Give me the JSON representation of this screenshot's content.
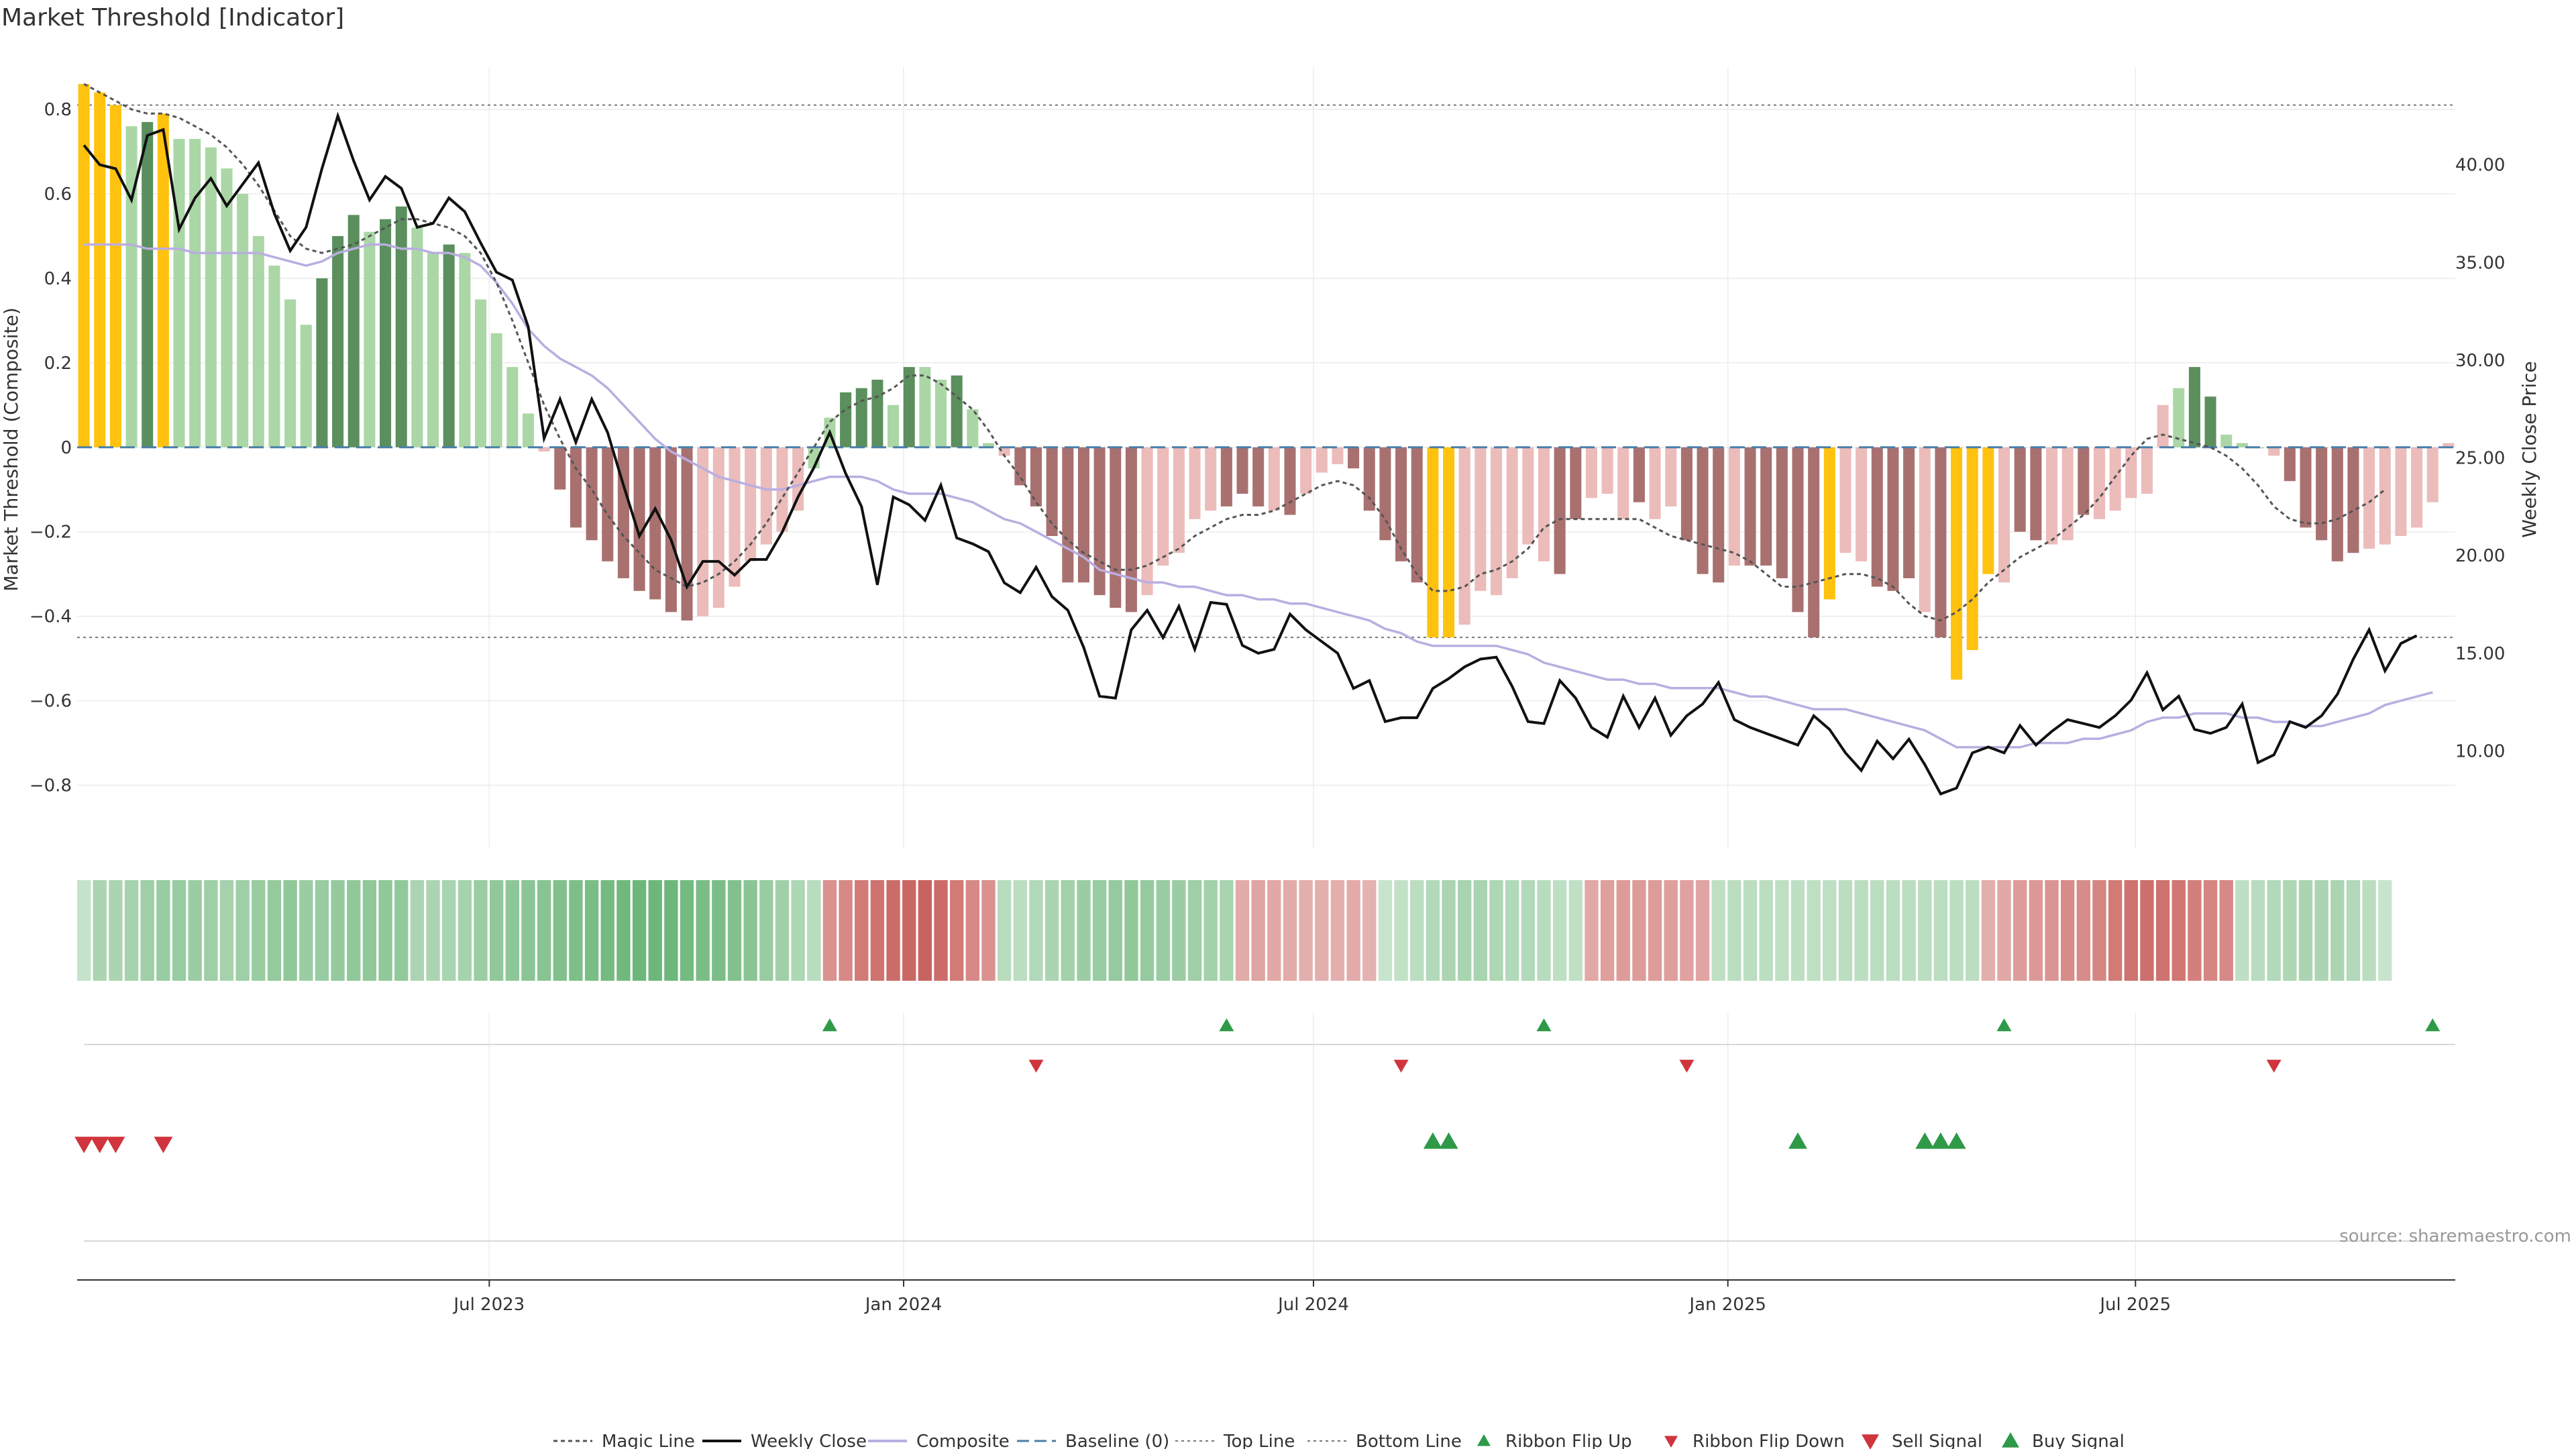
{
  "title": "Market Threshold [Indicator]",
  "source": "source: sharemaestro.com",
  "colors": {
    "dark_green": "#5b8f5e",
    "light_green": "#aad7a5",
    "dark_red": "#a87170",
    "light_red": "#ebbcba",
    "gold": "#ffc20e",
    "close_line": "#111111",
    "composite_line": "#b9aee0",
    "magic_line": "#555555",
    "baseline": "#4a7fa8",
    "ribbon_up": "#2e9a48",
    "ribbon_down": "#d0343c",
    "sell_signal": "#d0343c",
    "buy_signal": "#2e9a48"
  },
  "chart_data": {
    "type": "bar",
    "title": "Market Threshold [Indicator]",
    "ylabel": "Market Threshold (Composite)",
    "y2label": "Weekly Close Price",
    "ylim": [
      -0.95,
      0.9
    ],
    "y2lim": [
      5,
      45
    ],
    "yticks": [
      0.8,
      0.6,
      0.4,
      0.2,
      0,
      -0.2,
      -0.4,
      -0.6,
      -0.8
    ],
    "ytick_labels": [
      "0.8",
      "0.6",
      "0.4",
      "0.2",
      "0",
      "−0.2",
      "−0.4",
      "−0.6",
      "−0.8"
    ],
    "y2ticks": [
      40,
      35,
      30,
      25,
      20,
      15,
      10
    ],
    "y2tick_labels": [
      "40.00",
      "35.00",
      "30.00",
      "25.00",
      "20.00",
      "15.00",
      "10.00"
    ],
    "x_start": "2023-01-02",
    "x_end": "2025-11-17",
    "x_axis_range": [
      "2022-12-30",
      "2025-11-20"
    ],
    "xticks": [
      "2023-07-01",
      "2024-01-01",
      "2024-07-01",
      "2025-01-01",
      "2025-07-01"
    ],
    "xtick_labels": [
      "Jul 2023",
      "Jan 2024",
      "Jul 2024",
      "Jan 2025",
      "Jul 2025"
    ],
    "top_line": 0.81,
    "bottom_line": -0.45,
    "grid": true,
    "legend_position": "bottom",
    "composite_bars": [
      0.86,
      0.84,
      0.81,
      0.76,
      0.77,
      0.79,
      0.73,
      0.73,
      0.71,
      0.66,
      0.6,
      0.5,
      0.43,
      0.35,
      0.29,
      0.4,
      0.5,
      0.55,
      0.51,
      0.54,
      0.57,
      0.52,
      0.46,
      0.48,
      0.46,
      0.35,
      0.27,
      0.19,
      0.08,
      -0.01,
      -0.1,
      -0.19,
      -0.22,
      -0.27,
      -0.31,
      -0.34,
      -0.36,
      -0.39,
      -0.41,
      -0.4,
      -0.38,
      -0.33,
      -0.27,
      -0.23,
      -0.2,
      -0.15,
      -0.05,
      0.07,
      0.13,
      0.14,
      0.16,
      0.1,
      0.19,
      0.19,
      0.16,
      0.17,
      0.09,
      0.01,
      -0.02,
      -0.09,
      -0.14,
      -0.21,
      -0.32,
      -0.32,
      -0.35,
      -0.38,
      -0.39,
      -0.35,
      -0.28,
      -0.25,
      -0.17,
      -0.15,
      -0.14,
      -0.11,
      -0.14,
      -0.15,
      -0.16,
      -0.11,
      -0.06,
      -0.04,
      -0.05,
      -0.15,
      -0.22,
      -0.27,
      -0.32,
      -0.45,
      -0.45,
      -0.42,
      -0.34,
      -0.35,
      -0.31,
      -0.23,
      -0.27,
      -0.3,
      -0.17,
      -0.12,
      -0.11,
      -0.17,
      -0.13,
      -0.17,
      -0.14,
      -0.22,
      -0.3,
      -0.32,
      -0.28,
      -0.28,
      -0.28,
      -0.31,
      -0.39,
      -0.45,
      -0.36,
      -0.25,
      -0.27,
      -0.33,
      -0.34,
      -0.31,
      -0.39,
      -0.45,
      -0.55,
      -0.48,
      -0.3,
      -0.32,
      -0.2,
      -0.22,
      -0.23,
      -0.22,
      -0.16,
      -0.17,
      -0.15,
      -0.12,
      -0.11,
      0.1,
      0.14,
      0.19,
      0.12,
      0.03,
      0.01,
      0.0,
      -0.02,
      -0.08,
      -0.19,
      -0.22,
      -0.27,
      -0.25,
      -0.24,
      -0.23,
      -0.21,
      -0.19,
      -0.13,
      0.01
    ],
    "bar_categories": [
      "ldg",
      "g",
      "g",
      "lg",
      "dg",
      "g",
      "lg",
      "lg",
      "lg",
      "lg",
      "lg",
      "lg",
      "lg",
      "lg",
      "lg",
      "dg",
      "dg",
      "dg",
      "lg",
      "dg",
      "dg",
      "lg",
      "lg",
      "dg",
      "lg",
      "lg",
      "lg",
      "lg",
      "lg",
      "lr",
      "dr",
      "dr",
      "dr",
      "dr",
      "dr",
      "dr",
      "dr",
      "dr",
      "dr",
      "lr",
      "lr",
      "lr",
      "lr",
      "lr",
      "lr",
      "lr",
      "lg",
      "lg",
      "dg",
      "dg",
      "dg",
      "lg",
      "dg",
      "lg",
      "lg",
      "dg",
      "lg",
      "lg",
      "lr",
      "dr",
      "dr",
      "dr",
      "dr",
      "dr",
      "dr",
      "dr",
      "dr",
      "lr",
      "lr",
      "lr",
      "lr",
      "lr",
      "dr",
      "dr",
      "dr",
      "lr",
      "dr",
      "lr",
      "lr",
      "lr",
      "dr",
      "dr",
      "dr",
      "dr",
      "dr",
      "g",
      "g",
      "lr",
      "lr",
      "lr",
      "lr",
      "lr",
      "lr",
      "dr",
      "dr",
      "lr",
      "lr",
      "lr",
      "dr",
      "lr",
      "lr",
      "dr",
      "dr",
      "dr",
      "lr",
      "dr",
      "dr",
      "dr",
      "dr",
      "dr",
      "g",
      "lr",
      "lr",
      "dr",
      "dr",
      "dr",
      "lr",
      "dr",
      "g",
      "g",
      "g",
      "lr",
      "dr",
      "dr",
      "lr",
      "lr",
      "dr",
      "lr",
      "lr",
      "lr",
      "lr",
      "lr",
      "lg",
      "dg",
      "dg",
      "lg",
      "lg",
      "lg",
      "lr",
      "dr",
      "dr",
      "dr",
      "dr",
      "dr",
      "lr",
      "lr",
      "lr",
      "lr",
      "lr"
    ],
    "weekly_close": [
      41.0,
      40.0,
      39.8,
      38.2,
      41.5,
      41.8,
      36.7,
      38.3,
      39.3,
      37.9,
      39.0,
      40.1,
      37.5,
      35.6,
      36.8,
      39.8,
      42.5,
      40.2,
      38.2,
      39.4,
      38.8,
      36.8,
      37.0,
      38.3,
      37.6,
      36.0,
      34.5,
      34.1,
      31.7,
      26.0,
      28.0,
      25.8,
      28.0,
      26.3,
      23.6,
      21.0,
      22.4,
      20.8,
      18.4,
      19.7,
      19.7,
      19.0,
      19.8,
      19.8,
      21.2,
      23.0,
      24.5,
      26.3,
      24.2,
      22.5,
      18.5,
      23.0,
      22.6,
      21.8,
      23.6,
      20.9,
      20.6,
      20.2,
      18.6,
      18.1,
      19.4,
      17.9,
      17.2,
      15.3,
      12.8,
      12.7,
      16.2,
      17.2,
      15.8,
      17.4,
      15.2,
      17.6,
      17.5,
      15.4,
      15.0,
      15.2,
      17.0,
      16.2,
      15.6,
      15.0,
      13.2,
      13.6,
      11.5,
      11.7,
      11.7,
      13.2,
      13.7,
      14.3,
      14.7,
      14.8,
      13.3,
      11.5,
      11.4,
      13.6,
      12.7,
      11.2,
      10.7,
      12.8,
      11.2,
      12.7,
      10.8,
      11.8,
      12.4,
      13.5,
      11.6,
      11.2,
      10.9,
      10.6,
      10.3,
      11.8,
      11.1,
      9.9,
      9.0,
      10.5,
      9.6,
      10.6,
      9.3,
      7.8,
      8.1,
      9.9,
      10.2,
      9.9,
      11.3,
      10.3,
      11.0,
      11.6,
      11.4,
      11.2,
      11.8,
      12.6,
      14.0,
      12.1,
      12.8,
      11.1,
      10.9,
      11.2,
      12.4,
      9.4,
      9.8,
      11.5,
      11.2,
      11.8,
      12.9,
      14.7,
      16.2,
      14.1,
      15.5,
      15.9
    ],
    "composite": [
      0.48,
      0.48,
      0.48,
      0.48,
      0.47,
      0.47,
      0.47,
      0.46,
      0.46,
      0.46,
      0.46,
      0.46,
      0.45,
      0.44,
      0.43,
      0.44,
      0.46,
      0.47,
      0.48,
      0.48,
      0.47,
      0.47,
      0.46,
      0.46,
      0.45,
      0.43,
      0.39,
      0.34,
      0.28,
      0.24,
      0.21,
      0.19,
      0.17,
      0.14,
      0.1,
      0.06,
      0.02,
      -0.01,
      -0.03,
      -0.05,
      -0.07,
      -0.08,
      -0.09,
      -0.1,
      -0.1,
      -0.09,
      -0.08,
      -0.07,
      -0.07,
      -0.07,
      -0.08,
      -0.1,
      -0.11,
      -0.11,
      -0.11,
      -0.12,
      -0.13,
      -0.15,
      -0.17,
      -0.18,
      -0.2,
      -0.22,
      -0.24,
      -0.26,
      -0.29,
      -0.3,
      -0.31,
      -0.32,
      -0.32,
      -0.33,
      -0.33,
      -0.34,
      -0.35,
      -0.35,
      -0.36,
      -0.36,
      -0.37,
      -0.37,
      -0.38,
      -0.39,
      -0.4,
      -0.41,
      -0.43,
      -0.44,
      -0.46,
      -0.47,
      -0.47,
      -0.47,
      -0.47,
      -0.47,
      -0.48,
      -0.49,
      -0.51,
      -0.52,
      -0.53,
      -0.54,
      -0.55,
      -0.55,
      -0.56,
      -0.56,
      -0.57,
      -0.57,
      -0.57,
      -0.57,
      -0.58,
      -0.59,
      -0.59,
      -0.6,
      -0.61,
      -0.62,
      -0.62,
      -0.62,
      -0.63,
      -0.64,
      -0.65,
      -0.66,
      -0.67,
      -0.69,
      -0.71,
      -0.71,
      -0.71,
      -0.71,
      -0.71,
      -0.7,
      -0.7,
      -0.7,
      -0.69,
      -0.69,
      -0.68,
      -0.67,
      -0.65,
      -0.64,
      -0.64,
      -0.63,
      -0.63,
      -0.63,
      -0.64,
      -0.64,
      -0.65,
      -0.65,
      -0.66,
      -0.66,
      -0.65,
      -0.64,
      -0.63,
      -0.61,
      -0.6,
      -0.59,
      -0.58
    ],
    "magic_line": [
      0.86,
      0.84,
      0.82,
      0.8,
      0.79,
      0.79,
      0.78,
      0.76,
      0.74,
      0.71,
      0.67,
      0.62,
      0.56,
      0.5,
      0.47,
      0.46,
      0.47,
      0.48,
      0.5,
      0.52,
      0.54,
      0.54,
      0.53,
      0.52,
      0.5,
      0.46,
      0.39,
      0.3,
      0.2,
      0.1,
      0.02,
      -0.05,
      -0.1,
      -0.16,
      -0.21,
      -0.25,
      -0.29,
      -0.31,
      -0.33,
      -0.32,
      -0.3,
      -0.27,
      -0.23,
      -0.18,
      -0.12,
      -0.06,
      0.0,
      0.06,
      0.09,
      0.11,
      0.12,
      0.14,
      0.17,
      0.17,
      0.15,
      0.12,
      0.09,
      0.04,
      -0.02,
      -0.07,
      -0.13,
      -0.18,
      -0.22,
      -0.25,
      -0.27,
      -0.29,
      -0.29,
      -0.28,
      -0.26,
      -0.24,
      -0.21,
      -0.19,
      -0.17,
      -0.16,
      -0.16,
      -0.15,
      -0.13,
      -0.11,
      -0.09,
      -0.08,
      -0.09,
      -0.12,
      -0.17,
      -0.24,
      -0.3,
      -0.34,
      -0.34,
      -0.33,
      -0.3,
      -0.29,
      -0.27,
      -0.24,
      -0.19,
      -0.17,
      -0.17,
      -0.17,
      -0.17,
      -0.17,
      -0.17,
      -0.19,
      -0.21,
      -0.22,
      -0.23,
      -0.24,
      -0.25,
      -0.27,
      -0.3,
      -0.33,
      -0.33,
      -0.32,
      -0.31,
      -0.3,
      -0.3,
      -0.31,
      -0.33,
      -0.37,
      -0.4,
      -0.41,
      -0.39,
      -0.36,
      -0.32,
      -0.29,
      -0.26,
      -0.24,
      -0.22,
      -0.19,
      -0.16,
      -0.12,
      -0.07,
      -0.02,
      0.02,
      0.03,
      0.02,
      0.01,
      0.0,
      -0.02,
      -0.05,
      -0.09,
      -0.14,
      -0.17,
      -0.18,
      -0.18,
      -0.17,
      -0.15,
      -0.13,
      -0.1
    ],
    "ribbon": [
      0.14,
      0.3,
      0.3,
      0.33,
      0.38,
      0.42,
      0.42,
      0.4,
      0.38,
      0.34,
      0.38,
      0.42,
      0.44,
      0.46,
      0.4,
      0.42,
      0.44,
      0.46,
      0.47,
      0.47,
      0.45,
      0.3,
      0.3,
      0.32,
      0.33,
      0.4,
      0.46,
      0.48,
      0.5,
      0.52,
      0.56,
      0.58,
      0.6,
      0.64,
      0.66,
      0.68,
      0.7,
      0.68,
      0.64,
      0.6,
      0.6,
      0.55,
      0.5,
      0.42,
      0.36,
      0.28,
      0.22,
      -0.35,
      -0.4,
      -0.48,
      -0.52,
      -0.55,
      -0.58,
      -0.6,
      -0.55,
      -0.48,
      -0.4,
      -0.35,
      0.22,
      0.2,
      0.25,
      0.3,
      0.35,
      0.4,
      0.42,
      0.44,
      0.46,
      0.44,
      0.42,
      0.4,
      0.38,
      0.35,
      0.32,
      -0.22,
      -0.25,
      -0.24,
      -0.22,
      -0.2,
      -0.2,
      -0.2,
      -0.22,
      -0.18,
      0.12,
      0.15,
      0.2,
      0.25,
      0.3,
      0.32,
      0.32,
      0.28,
      0.25,
      0.25,
      0.22,
      0.18,
      0.16,
      -0.24,
      -0.28,
      -0.3,
      -0.3,
      -0.3,
      -0.28,
      -0.26,
      -0.25,
      0.18,
      0.2,
      0.2,
      0.2,
      0.18,
      0.18,
      0.18,
      0.18,
      0.2,
      0.2,
      0.2,
      0.2,
      0.2,
      0.2,
      0.2,
      0.2,
      0.2,
      -0.2,
      -0.24,
      -0.3,
      -0.32,
      -0.34,
      -0.38,
      -0.38,
      -0.42,
      -0.48,
      -0.52,
      -0.54,
      -0.52,
      -0.5,
      -0.45,
      -0.42,
      -0.4,
      0.18,
      0.22,
      0.25,
      0.28,
      0.3,
      0.3,
      0.3,
      0.25,
      0.2,
      0.12
    ],
    "ribbon_flip_up_index": [
      47,
      72,
      92,
      121,
      148
    ],
    "ribbon_flip_down_index": [
      60,
      83,
      101,
      138
    ],
    "sell_signal_index": [
      0,
      1,
      2,
      5
    ],
    "buy_signal_index": [
      85,
      86,
      108,
      116,
      117,
      118
    ],
    "legend": [
      {
        "label": "Magic Line",
        "kind": "dotted"
      },
      {
        "label": "Weekly Close",
        "kind": "solid"
      },
      {
        "label": "Composite",
        "kind": "composite"
      },
      {
        "label": "Baseline (0)",
        "kind": "dashed"
      },
      {
        "label": "Top Line",
        "kind": "thin-dotted"
      },
      {
        "label": "Bottom Line",
        "kind": "thin-dotted"
      },
      {
        "label": "Ribbon Flip Up",
        "kind": "tri-up-small"
      },
      {
        "label": "Ribbon Flip Down",
        "kind": "tri-down-small"
      },
      {
        "label": "Sell Signal",
        "kind": "tri-down"
      },
      {
        "label": "Buy Signal",
        "kind": "tri-up"
      }
    ]
  }
}
